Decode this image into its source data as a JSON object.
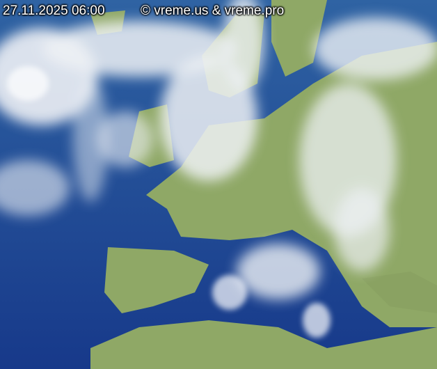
{
  "timestamp": "27.11.2025 06:00",
  "copyright": "© vreme.us & vreme.pro",
  "colors": {
    "ocean": "#1d4a8f",
    "land": "#8fa866",
    "cloud": "#f2f4f6"
  }
}
